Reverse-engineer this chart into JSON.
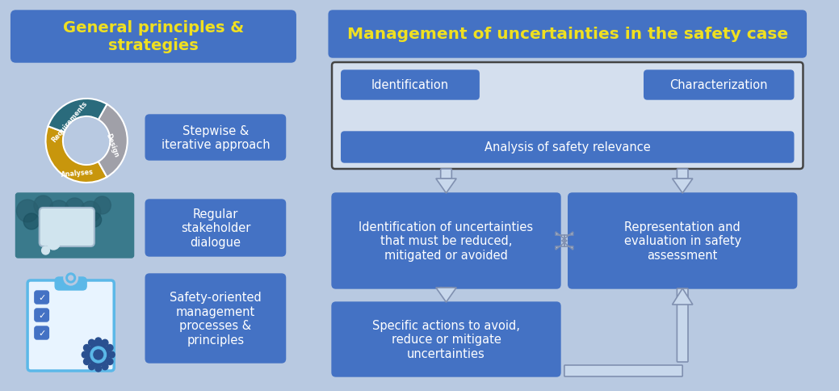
{
  "bg_color": "#b8c9e1",
  "left_panel": {
    "title": "General principles &\nstrategies",
    "title_color": "#f0e020",
    "title_bg": "#4472c4",
    "box_color": "#4472c4",
    "text_color": "#ffffff",
    "items": [
      "Stepwise &\niterative approach",
      "Regular\nstakeholder\ndialogue",
      "Safety-oriented\nmanagement\nprocesses &\nprinciples"
    ]
  },
  "right_panel": {
    "title": "Management of uncertainties in the safety case",
    "title_color": "#f0e020",
    "title_bg": "#4472c4",
    "box_color": "#4472c4",
    "text_color": "#ffffff",
    "top_border": "#555555",
    "mid_left": "Identification of uncertainties\nthat must be reduced,\nmitigated or avoided",
    "mid_right": "Representation and\nevaluation in safety\nassessment",
    "bottom": "Specific actions to avoid,\nreduce or mitigate\nuncertainties"
  },
  "donut": {
    "requirements_color": "#c8960c",
    "design_color": "#a0a0a8",
    "analyses_color": "#2a6b7c"
  },
  "arrow_fill": "#c8d8ec",
  "arrow_edge": "#8090b0"
}
